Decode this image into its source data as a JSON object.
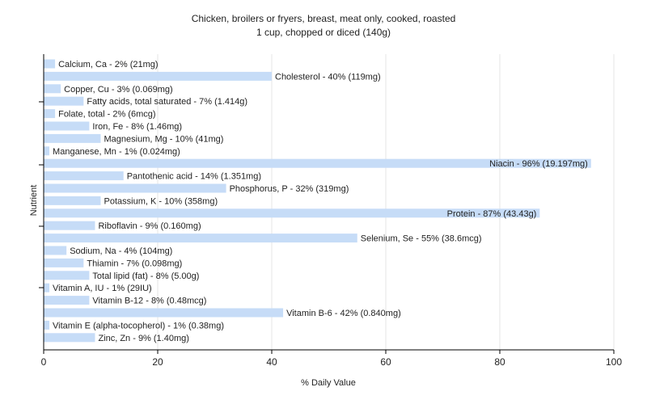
{
  "chart_data": {
    "type": "bar",
    "orientation": "horizontal",
    "title": "Chicken, broilers or fryers, breast, meat only, cooked, roasted",
    "subtitle": "1 cup, chopped or diced (140g)",
    "xlabel": "% Daily Value",
    "ylabel": "Nutrient",
    "xlim": [
      0,
      100
    ],
    "xticks": [
      "0",
      "20",
      "40",
      "60",
      "80",
      "100"
    ],
    "grid": "vertical",
    "bar_color": "#c6dcf7",
    "categories": [
      "Calcium, Ca",
      "Cholesterol",
      "Copper, Cu",
      "Fatty acids, total saturated",
      "Folate, total",
      "Iron, Fe",
      "Magnesium, Mg",
      "Manganese, Mn",
      "Niacin",
      "Pantothenic acid",
      "Phosphorus, P",
      "Potassium, K",
      "Protein",
      "Riboflavin",
      "Selenium, Se",
      "Sodium, Na",
      "Thiamin",
      "Total lipid (fat)",
      "Vitamin A, IU",
      "Vitamin B-12",
      "Vitamin B-6",
      "Vitamin E (alpha-tocopherol)",
      "Zinc, Zn"
    ],
    "values": [
      2,
      40,
      3,
      7,
      2,
      8,
      10,
      1,
      96,
      14,
      32,
      10,
      87,
      9,
      55,
      4,
      7,
      8,
      1,
      8,
      42,
      1,
      9
    ],
    "labels": [
      "Calcium, Ca - 2% (21mg)",
      "Cholesterol - 40% (119mg)",
      "Copper, Cu - 3% (0.069mg)",
      "Fatty acids, total saturated - 7% (1.414g)",
      "Folate, total - 2% (6mcg)",
      "Iron, Fe - 8% (1.46mg)",
      "Magnesium, Mg - 10% (41mg)",
      "Manganese, Mn - 1% (0.024mg)",
      "Niacin - 96% (19.197mg)",
      "Pantothenic acid - 14% (1.351mg)",
      "Phosphorus, P - 32% (319mg)",
      "Potassium, K - 10% (358mg)",
      "Protein - 87% (43.43g)",
      "Riboflavin - 9% (0.160mg)",
      "Selenium, Se - 55% (38.6mcg)",
      "Sodium, Na - 4% (104mg)",
      "Thiamin - 7% (0.098mg)",
      "Total lipid (fat) - 8% (5.00g)",
      "Vitamin A, IU - 1% (29IU)",
      "Vitamin B-12 - 8% (0.48mcg)",
      "Vitamin B-6 - 42% (0.840mg)",
      "Vitamin E (alpha-tocopherol) - 1% (0.38mg)",
      "Zinc, Zn - 9% (1.40mg)"
    ]
  }
}
